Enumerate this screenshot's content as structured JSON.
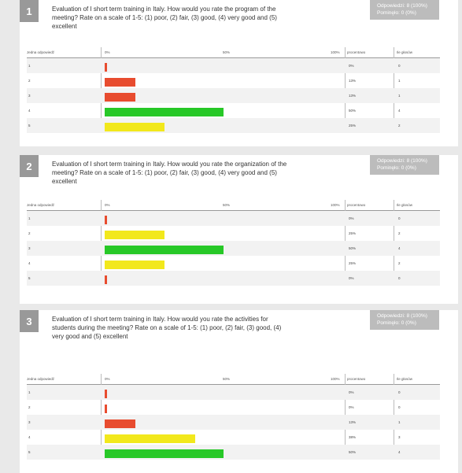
{
  "stats_answers_label": "Odpowiedzi: 8 (100%)",
  "stats_skipped_label": "Pominęło: 0 (0%)",
  "header": {
    "col_answer": "Jedna odpowiedź",
    "tick_0": "0%",
    "tick_50": "50%",
    "tick_100": "100%",
    "col_percent": "procentowo",
    "col_votes": "Ile głosów"
  },
  "colors": {
    "red": "#e84c2f",
    "green": "#27c827",
    "yellow": "#f2e81c"
  },
  "questions": [
    {
      "number": "1",
      "text": "Evaluation of I short term training in Italy. How would you rate the program of the meeting? Rate on a scale of 1-5: (1) poor, (2) fair, (3) good, (4) very good and (5) excellent",
      "rows": [
        {
          "label": "1",
          "pct_text": "0%",
          "votes": "0"
        },
        {
          "label": "2",
          "pct_text": "13%",
          "votes": "1"
        },
        {
          "label": "3",
          "pct_text": "13%",
          "votes": "1"
        },
        {
          "label": "4",
          "pct_text": "50%",
          "votes": "4"
        },
        {
          "label": "5",
          "pct_text": "25%",
          "votes": "2"
        }
      ]
    },
    {
      "number": "2",
      "text": "Evaluation of I short term training in Italy. How would you rate the organization of the meeting? Rate on a scale of 1-5: (1) poor, (2) fair, (3) good, (4) very good and (5) excellent",
      "rows": [
        {
          "label": "1",
          "pct_text": "0%",
          "votes": "0"
        },
        {
          "label": "2",
          "pct_text": "25%",
          "votes": "2"
        },
        {
          "label": "3",
          "pct_text": "50%",
          "votes": "4"
        },
        {
          "label": "4",
          "pct_text": "25%",
          "votes": "2"
        },
        {
          "label": "5",
          "pct_text": "0%",
          "votes": "0"
        }
      ]
    },
    {
      "number": "3",
      "text": "Evaluation of I short term training in Italy. How would you rate the activities for students during the meeting? Rate on a scale of 1-5: (1) poor, (2) fair, (3) good, (4) very good and (5) excellent",
      "rows": [
        {
          "label": "1",
          "pct_text": "0%",
          "votes": "0"
        },
        {
          "label": "2",
          "pct_text": "0%",
          "votes": "0"
        },
        {
          "label": "3",
          "pct_text": "13%",
          "votes": "1"
        },
        {
          "label": "4",
          "pct_text": "38%",
          "votes": "3"
        },
        {
          "label": "5",
          "pct_text": "50%",
          "votes": "4"
        }
      ]
    }
  ],
  "chart_data": [
    {
      "type": "bar",
      "orientation": "horizontal",
      "categories": [
        "1",
        "2",
        "3",
        "4",
        "5"
      ],
      "values": [
        0,
        13,
        13,
        50,
        25
      ],
      "colors": [
        "red",
        "red",
        "red",
        "green",
        "yellow"
      ],
      "xlim": [
        0,
        100
      ]
    },
    {
      "type": "bar",
      "orientation": "horizontal",
      "categories": [
        "1",
        "2",
        "3",
        "4",
        "5"
      ],
      "values": [
        0,
        25,
        50,
        25,
        0
      ],
      "colors": [
        "red",
        "yellow",
        "green",
        "yellow",
        "red"
      ],
      "xlim": [
        0,
        100
      ]
    },
    {
      "type": "bar",
      "orientation": "horizontal",
      "categories": [
        "1",
        "2",
        "3",
        "4",
        "5"
      ],
      "values": [
        0,
        0,
        13,
        38,
        50
      ],
      "colors": [
        "red",
        "red",
        "red",
        "yellow",
        "green"
      ],
      "xlim": [
        0,
        100
      ]
    }
  ]
}
